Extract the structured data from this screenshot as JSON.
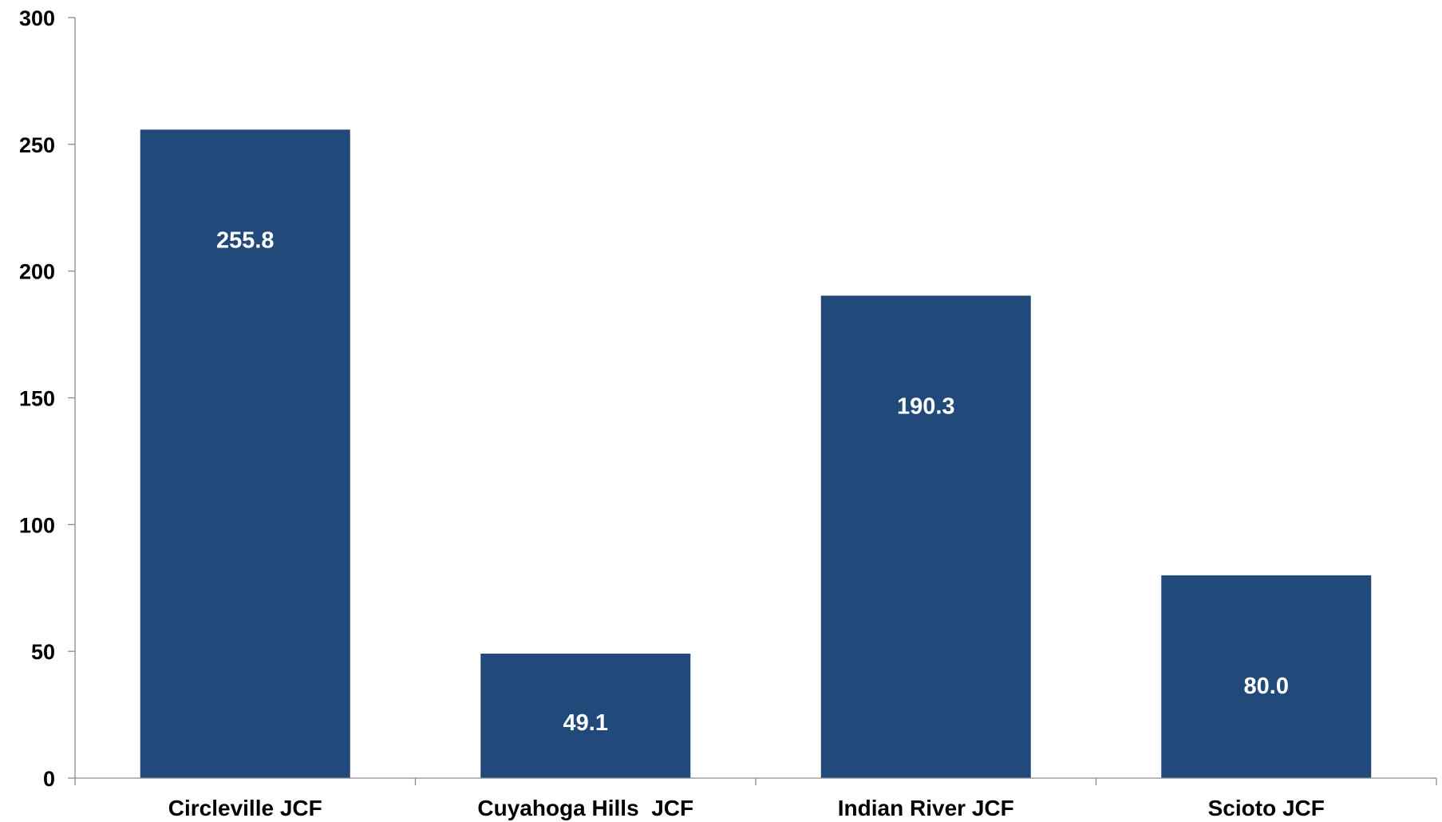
{
  "chart_data": {
    "type": "bar",
    "categories": [
      "Circleville JCF",
      "Cuyahoga Hills  JCF",
      "Indian River JCF",
      "Scioto JCF"
    ],
    "values": [
      255.8,
      49.1,
      190.3,
      80.0
    ],
    "data_labels": [
      "255.8",
      "49.1",
      "190.3",
      "80.0"
    ],
    "title": "",
    "xlabel": "",
    "ylabel": "",
    "ylim": [
      0,
      300
    ],
    "y_ticks": [
      0,
      50,
      100,
      150,
      200,
      250,
      300
    ],
    "grid": false,
    "legend": "none",
    "bar_color": "#21497A",
    "data_label_color": "#FFFFFF",
    "axis_color": "#8C8C8C"
  }
}
